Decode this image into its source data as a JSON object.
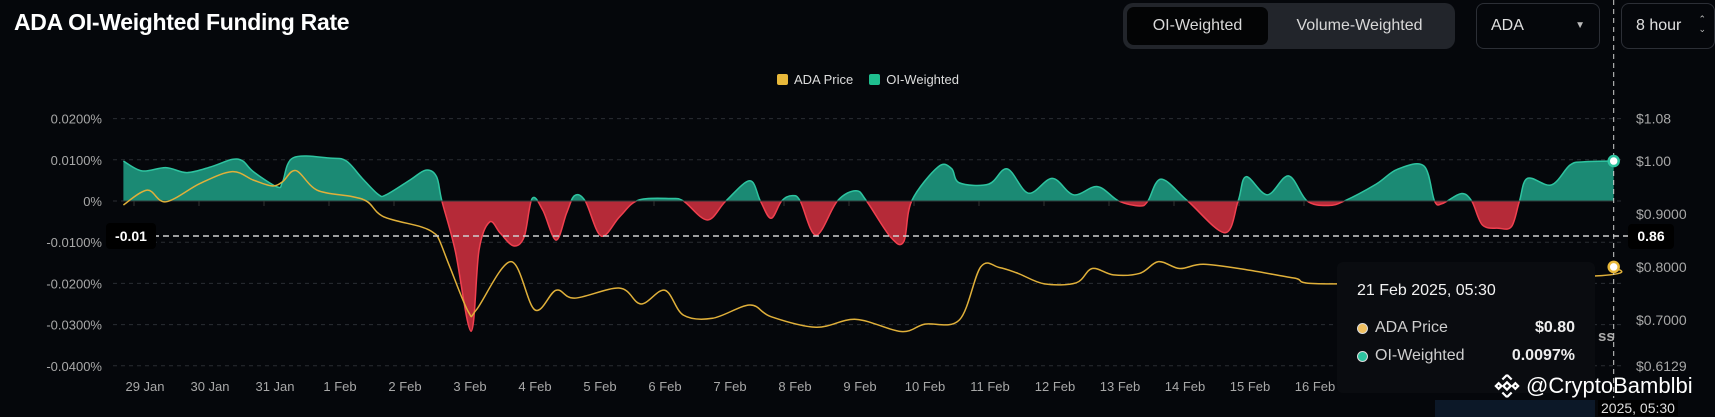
{
  "header": {
    "title": "ADA OI-Weighted Funding Rate",
    "tabs": [
      {
        "label": "OI-Weighted",
        "active": true
      },
      {
        "label": "Volume-Weighted",
        "active": false
      }
    ],
    "symbol_select": "ADA",
    "interval_select": "8 hour"
  },
  "colors": {
    "background": "#05070b",
    "positive": "#1b8a74",
    "positive_line": "#2ec4a0",
    "negative": "#b52a38",
    "negative_line": "#f0404f",
    "price": "#e0b03a"
  },
  "icons": {
    "select_caret": "caret-down-icon",
    "stepper": "chevron-up-down-icon",
    "watermark_logo": "binance-logo-icon"
  },
  "crosshair": {
    "left_value": "-0.01",
    "right_value": "0.86",
    "x_label": "2025, 05:30"
  },
  "tooltip": {
    "date": "21 Feb 2025, 05:30",
    "rows": [
      {
        "label": "ADA Price",
        "value": "$0.80",
        "color": "#f0c060"
      },
      {
        "label": "OI-Weighted",
        "value": "0.0097%",
        "color": "#2ec4a0"
      }
    ]
  },
  "occluded_text": "ss",
  "watermark": "@CryptoBamblbi",
  "chart_data": {
    "type": "area",
    "title": "ADA OI-Weighted Funding Rate",
    "legend": {
      "position": "top-center",
      "entries": [
        "ADA Price",
        "OI-Weighted"
      ]
    },
    "grid": true,
    "x_ticks": [
      "29 Jan",
      "30 Jan",
      "31 Jan",
      "1 Feb",
      "2 Feb",
      "3 Feb",
      "4 Feb",
      "5 Feb",
      "6 Feb",
      "7 Feb",
      "8 Feb",
      "9 Feb",
      "10 Feb",
      "11 Feb",
      "12 Feb",
      "13 Feb",
      "14 Feb",
      "15 Feb",
      "16 Feb"
    ],
    "y_left": {
      "unit": "%",
      "range": [
        -0.04,
        0.02
      ],
      "ticks": [
        {
          "v": 0.02,
          "label": "0.0200%"
        },
        {
          "v": 0.01,
          "label": "0.0100%"
        },
        {
          "v": 0,
          "label": "0%"
        },
        {
          "v": -0.01,
          "label": "-0.0100%"
        },
        {
          "v": -0.02,
          "label": "-0.0200%"
        },
        {
          "v": -0.03,
          "label": "-0.0300%"
        },
        {
          "v": -0.04,
          "label": "-0.0400%"
        }
      ]
    },
    "y_right": {
      "unit": "$",
      "range": [
        0.6129,
        1.08
      ],
      "ticks": [
        {
          "v": 1.08,
          "label": "$1.08"
        },
        {
          "v": 1.0,
          "label": "$1.00"
        },
        {
          "v": 0.9,
          "label": "$0.9000"
        },
        {
          "v": 0.8,
          "label": "$0.8000"
        },
        {
          "v": 0.7,
          "label": "$0.7000"
        },
        {
          "v": 0.6129,
          "label": "$0.6129"
        }
      ]
    },
    "series": [
      {
        "name": "OI-Weighted",
        "axis": "left",
        "type": "area",
        "points": [
          [
            "2025-01-28T20:00",
            0.0097
          ],
          [
            "2025-01-29T03:00",
            0.0073
          ],
          [
            "2025-01-29T12:00",
            0.0081
          ],
          [
            "2025-01-29T20:00",
            0.0069
          ],
          [
            "2025-01-30T05:00",
            0.0083
          ],
          [
            "2025-01-30T13:00",
            0.0101
          ],
          [
            "2025-01-30T17:00",
            0.0097
          ],
          [
            "2025-01-30T21:00",
            0.0071
          ],
          [
            "2025-01-31T06:00",
            0.0034
          ],
          [
            "2025-01-31T08:00",
            0.0047
          ],
          [
            "2025-01-31T12:00",
            0.0105
          ],
          [
            "2025-02-01T02:00",
            0.0104
          ],
          [
            "2025-02-01T08:00",
            0.0097
          ],
          [
            "2025-02-01T14:00",
            0.0055
          ],
          [
            "2025-02-01T20:00",
            0.0016
          ],
          [
            "2025-02-01T23:00",
            0.0015
          ],
          [
            "2025-02-02T08:00",
            0.0051
          ],
          [
            "2025-02-02T14:00",
            0.0075
          ],
          [
            "2025-02-02T18:00",
            0.0059
          ],
          [
            "2025-02-02T20:00",
            0.0
          ],
          [
            "2025-02-03T01:00",
            -0.012
          ],
          [
            "2025-02-03T07:00",
            -0.0316
          ],
          [
            "2025-02-03T10:00",
            -0.0119
          ],
          [
            "2025-02-03T14:00",
            -0.0051
          ],
          [
            "2025-02-03T18:00",
            -0.0078
          ],
          [
            "2025-02-03T23:00",
            -0.0109
          ],
          [
            "2025-02-04T03:00",
            -0.0087
          ],
          [
            "2025-02-04T06:00",
            0.0006
          ],
          [
            "2025-02-04T10:00",
            -0.0022
          ],
          [
            "2025-02-04T15:00",
            -0.0095
          ],
          [
            "2025-02-04T19:00",
            -0.0029
          ],
          [
            "2025-02-04T22:00",
            0.0013
          ],
          [
            "2025-02-05T02:00",
            0.0
          ],
          [
            "2025-02-05T08:00",
            -0.0085
          ],
          [
            "2025-02-05T15:00",
            -0.0038
          ],
          [
            "2025-02-05T22:00",
            0.0002
          ],
          [
            "2025-02-06T10:00",
            0.0006
          ],
          [
            "2025-02-06T15:00",
            0.0
          ],
          [
            "2025-02-07T00:00",
            -0.0046
          ],
          [
            "2025-02-07T07:00",
            0.0
          ],
          [
            "2025-02-07T16:00",
            0.0049
          ],
          [
            "2025-02-07T20:00",
            0.0
          ],
          [
            "2025-02-08T00:00",
            -0.0042
          ],
          [
            "2025-02-08T04:00",
            0.0
          ],
          [
            "2025-02-08T08:00",
            0.0013
          ],
          [
            "2025-02-08T11:00",
            0.0
          ],
          [
            "2025-02-08T17:00",
            -0.0083
          ],
          [
            "2025-02-09T01:00",
            0.0
          ],
          [
            "2025-02-09T08:00",
            0.0025
          ],
          [
            "2025-02-09T12:00",
            0.0
          ],
          [
            "2025-02-09T21:00",
            -0.0087
          ],
          [
            "2025-02-10T02:00",
            -0.0099
          ],
          [
            "2025-02-10T05:00",
            0.0
          ],
          [
            "2025-02-10T15:00",
            0.0083
          ],
          [
            "2025-02-10T20:00",
            0.0079
          ],
          [
            "2025-02-10T23:00",
            0.0044
          ],
          [
            "2025-02-11T10:00",
            0.0041
          ],
          [
            "2025-02-11T17:00",
            0.0078
          ],
          [
            "2025-02-12T01:00",
            0.0019
          ],
          [
            "2025-02-12T10:00",
            0.0055
          ],
          [
            "2025-02-12T18:00",
            0.0015
          ],
          [
            "2025-02-13T03:00",
            0.0035
          ],
          [
            "2025-02-13T11:00",
            0.0
          ],
          [
            "2025-02-13T19:00",
            -0.0012
          ],
          [
            "2025-02-13T22:00",
            0.0
          ],
          [
            "2025-02-14T03:00",
            0.0053
          ],
          [
            "2025-02-14T13:00",
            0.0
          ],
          [
            "2025-02-15T03:00",
            -0.0077
          ],
          [
            "2025-02-15T08:00",
            0.0
          ],
          [
            "2025-02-15T11:00",
            0.0059
          ],
          [
            "2025-02-15T19:00",
            0.0015
          ],
          [
            "2025-02-16T03:00",
            0.0061
          ],
          [
            "2025-02-16T10:00",
            0.0
          ],
          [
            "2025-02-16T18:00",
            -0.0011
          ],
          [
            "2025-02-17T00:00",
            0.0
          ],
          [
            "2025-02-17T12:00",
            0.0041
          ],
          [
            "2025-02-17T20:00",
            0.0077
          ],
          [
            "2025-02-18T06:00",
            0.0085
          ],
          [
            "2025-02-18T10:00",
            0.0
          ],
          [
            "2025-02-18T13:00",
            -0.0006
          ],
          [
            "2025-02-18T20:00",
            0.0018
          ],
          [
            "2025-02-19T00:00",
            0.0
          ],
          [
            "2025-02-19T04:00",
            -0.0058
          ],
          [
            "2025-02-19T10:00",
            -0.0066
          ],
          [
            "2025-02-19T15:00",
            -0.0062
          ],
          [
            "2025-02-19T18:00",
            0.0
          ],
          [
            "2025-02-19T21:00",
            0.0055
          ],
          [
            "2025-02-20T06:00",
            0.0039
          ],
          [
            "2025-02-20T13:00",
            0.0087
          ],
          [
            "2025-02-20T18:00",
            0.0095
          ],
          [
            "2025-02-21T05:30",
            0.0097
          ]
        ]
      },
      {
        "name": "ADA Price",
        "axis": "right",
        "type": "line",
        "points": [
          [
            "2025-01-28T20:00",
            0.917
          ],
          [
            "2025-01-29T05:00",
            0.945
          ],
          [
            "2025-01-29T12:00",
            0.923
          ],
          [
            "2025-01-30T01:00",
            0.958
          ],
          [
            "2025-01-30T13:00",
            0.98
          ],
          [
            "2025-01-30T21:00",
            0.964
          ],
          [
            "2025-01-31T04:00",
            0.953
          ],
          [
            "2025-01-31T08:00",
            0.961
          ],
          [
            "2025-01-31T13:00",
            0.982
          ],
          [
            "2025-01-31T21:00",
            0.945
          ],
          [
            "2025-02-01T10:00",
            0.933
          ],
          [
            "2025-02-01T16:00",
            0.923
          ],
          [
            "2025-02-01T22:00",
            0.895
          ],
          [
            "2025-02-02T12:00",
            0.876
          ],
          [
            "2025-02-02T17:00",
            0.864
          ],
          [
            "2025-02-02T19:00",
            0.851
          ],
          [
            "2025-02-02T23:00",
            0.8
          ],
          [
            "2025-02-03T06:00",
            0.715
          ],
          [
            "2025-02-03T09:00",
            0.719
          ],
          [
            "2025-02-03T22:00",
            0.81
          ],
          [
            "2025-02-04T07:00",
            0.719
          ],
          [
            "2025-02-04T15:00",
            0.756
          ],
          [
            "2025-02-04T22:00",
            0.741
          ],
          [
            "2025-02-05T15:00",
            0.76
          ],
          [
            "2025-02-05T23:00",
            0.73
          ],
          [
            "2025-02-06T08:00",
            0.756
          ],
          [
            "2025-02-06T15:00",
            0.709
          ],
          [
            "2025-02-07T02:00",
            0.703
          ],
          [
            "2025-02-07T16:00",
            0.728
          ],
          [
            "2025-02-08T00:00",
            0.706
          ],
          [
            "2025-02-08T17:00",
            0.686
          ],
          [
            "2025-02-09T08:00",
            0.701
          ],
          [
            "2025-02-10T01:00",
            0.678
          ],
          [
            "2025-02-10T10:00",
            0.692
          ],
          [
            "2025-02-10T23:00",
            0.7
          ],
          [
            "2025-02-11T07:00",
            0.8
          ],
          [
            "2025-02-11T14:00",
            0.799
          ],
          [
            "2025-02-11T21:00",
            0.788
          ],
          [
            "2025-02-12T07:00",
            0.768
          ],
          [
            "2025-02-12T19:00",
            0.77
          ],
          [
            "2025-02-13T01:00",
            0.797
          ],
          [
            "2025-02-13T09:00",
            0.785
          ],
          [
            "2025-02-13T19:00",
            0.788
          ],
          [
            "2025-02-14T02:00",
            0.81
          ],
          [
            "2025-02-14T10:00",
            0.797
          ],
          [
            "2025-02-14T19:00",
            0.805
          ],
          [
            "2025-02-15T12:00",
            0.794
          ],
          [
            "2025-02-16T05:00",
            0.779
          ],
          [
            "2025-02-16T21:00",
            0.768
          ],
          [
            "2025-02-20T23:00",
            0.783
          ],
          [
            "2025-02-21T05:30",
            0.8
          ]
        ]
      }
    ]
  }
}
